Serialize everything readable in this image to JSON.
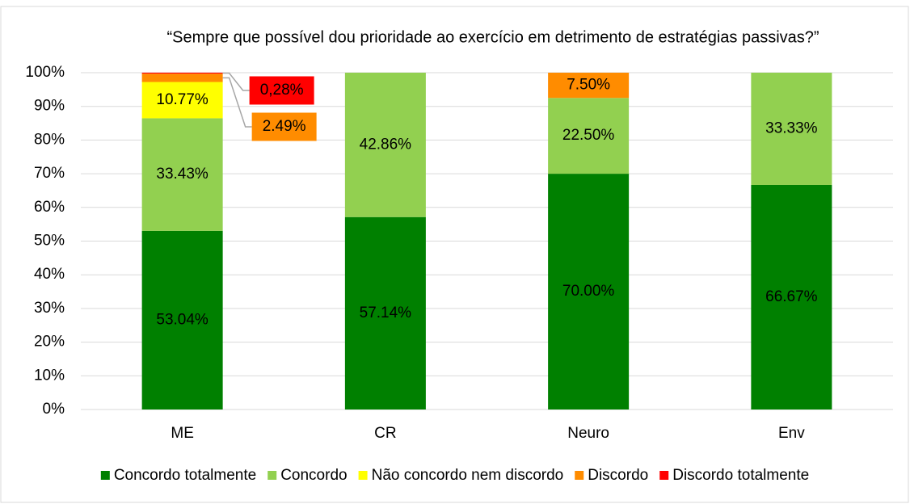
{
  "chart_data": {
    "type": "stacked_bar",
    "title": "“Sempre que possível dou prioridade ao exercício em detrimento de estratégias passivas?”",
    "categories": [
      "ME",
      "CR",
      "Neuro",
      "Env"
    ],
    "series": [
      {
        "name": "Concordo totalmente",
        "color": "#008000",
        "values": [
          53.04,
          57.14,
          70.0,
          66.67
        ],
        "value_labels": [
          "53.04%",
          "57.14%",
          "70.00%",
          "66.67%"
        ]
      },
      {
        "name": "Concordo",
        "color": "#92d050",
        "values": [
          33.43,
          42.86,
          22.5,
          33.33
        ],
        "value_labels": [
          "33.43%",
          "42.86%",
          "22.50%",
          "33.33%"
        ]
      },
      {
        "name": "Não concordo nem discordo",
        "color": "#ffff00",
        "values": [
          10.77,
          null,
          null,
          null
        ],
        "value_labels": [
          "10.77%",
          null,
          null,
          null
        ]
      },
      {
        "name": "Discordo",
        "color": "#ff8c00",
        "values": [
          2.49,
          null,
          7.5,
          null
        ],
        "value_labels": [
          "2.49%",
          null,
          "7.50%",
          null
        ]
      },
      {
        "name": "Discordo totalmente",
        "color": "#ff0000",
        "values": [
          0.28,
          null,
          null,
          null
        ],
        "value_labels": [
          "0,28%",
          null,
          null,
          null
        ]
      }
    ],
    "ylim": [
      0,
      100
    ],
    "yticks": [
      {
        "value": 0,
        "label": "0%"
      },
      {
        "value": 10,
        "label": "10%"
      },
      {
        "value": 20,
        "label": "20%"
      },
      {
        "value": 30,
        "label": "30%"
      },
      {
        "value": 40,
        "label": "40%"
      },
      {
        "value": 50,
        "label": "50%"
      },
      {
        "value": 60,
        "label": "60%"
      },
      {
        "value": 70,
        "label": "70%"
      },
      {
        "value": 80,
        "label": "80%"
      },
      {
        "value": 90,
        "label": "90%"
      },
      {
        "value": 100,
        "label": "100%"
      }
    ],
    "grid": true,
    "legend": "bottom"
  }
}
